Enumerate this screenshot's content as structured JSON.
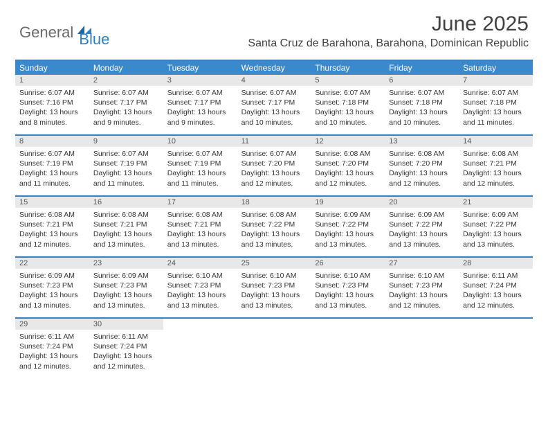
{
  "brand": {
    "part1": "General",
    "part2": "Blue"
  },
  "title": "June 2025",
  "location": "Santa Cruz de Barahona, Barahona, Dominican Republic",
  "colors": {
    "header_bg": "#3a89cc",
    "border": "#3a80bf",
    "daynum_bg": "#e7e8e9",
    "text": "#333333",
    "brand_gray": "#6a6a6a",
    "brand_blue": "#2f7fc4"
  },
  "days_of_week": [
    "Sunday",
    "Monday",
    "Tuesday",
    "Wednesday",
    "Thursday",
    "Friday",
    "Saturday"
  ],
  "weeks": [
    [
      {
        "n": "1",
        "sr": "Sunrise: 6:07 AM",
        "ss": "Sunset: 7:16 PM",
        "d1": "Daylight: 13 hours",
        "d2": "and 8 minutes."
      },
      {
        "n": "2",
        "sr": "Sunrise: 6:07 AM",
        "ss": "Sunset: 7:17 PM",
        "d1": "Daylight: 13 hours",
        "d2": "and 9 minutes."
      },
      {
        "n": "3",
        "sr": "Sunrise: 6:07 AM",
        "ss": "Sunset: 7:17 PM",
        "d1": "Daylight: 13 hours",
        "d2": "and 9 minutes."
      },
      {
        "n": "4",
        "sr": "Sunrise: 6:07 AM",
        "ss": "Sunset: 7:17 PM",
        "d1": "Daylight: 13 hours",
        "d2": "and 10 minutes."
      },
      {
        "n": "5",
        "sr": "Sunrise: 6:07 AM",
        "ss": "Sunset: 7:18 PM",
        "d1": "Daylight: 13 hours",
        "d2": "and 10 minutes."
      },
      {
        "n": "6",
        "sr": "Sunrise: 6:07 AM",
        "ss": "Sunset: 7:18 PM",
        "d1": "Daylight: 13 hours",
        "d2": "and 10 minutes."
      },
      {
        "n": "7",
        "sr": "Sunrise: 6:07 AM",
        "ss": "Sunset: 7:18 PM",
        "d1": "Daylight: 13 hours",
        "d2": "and 11 minutes."
      }
    ],
    [
      {
        "n": "8",
        "sr": "Sunrise: 6:07 AM",
        "ss": "Sunset: 7:19 PM",
        "d1": "Daylight: 13 hours",
        "d2": "and 11 minutes."
      },
      {
        "n": "9",
        "sr": "Sunrise: 6:07 AM",
        "ss": "Sunset: 7:19 PM",
        "d1": "Daylight: 13 hours",
        "d2": "and 11 minutes."
      },
      {
        "n": "10",
        "sr": "Sunrise: 6:07 AM",
        "ss": "Sunset: 7:19 PM",
        "d1": "Daylight: 13 hours",
        "d2": "and 11 minutes."
      },
      {
        "n": "11",
        "sr": "Sunrise: 6:07 AM",
        "ss": "Sunset: 7:20 PM",
        "d1": "Daylight: 13 hours",
        "d2": "and 12 minutes."
      },
      {
        "n": "12",
        "sr": "Sunrise: 6:08 AM",
        "ss": "Sunset: 7:20 PM",
        "d1": "Daylight: 13 hours",
        "d2": "and 12 minutes."
      },
      {
        "n": "13",
        "sr": "Sunrise: 6:08 AM",
        "ss": "Sunset: 7:20 PM",
        "d1": "Daylight: 13 hours",
        "d2": "and 12 minutes."
      },
      {
        "n": "14",
        "sr": "Sunrise: 6:08 AM",
        "ss": "Sunset: 7:21 PM",
        "d1": "Daylight: 13 hours",
        "d2": "and 12 minutes."
      }
    ],
    [
      {
        "n": "15",
        "sr": "Sunrise: 6:08 AM",
        "ss": "Sunset: 7:21 PM",
        "d1": "Daylight: 13 hours",
        "d2": "and 12 minutes."
      },
      {
        "n": "16",
        "sr": "Sunrise: 6:08 AM",
        "ss": "Sunset: 7:21 PM",
        "d1": "Daylight: 13 hours",
        "d2": "and 13 minutes."
      },
      {
        "n": "17",
        "sr": "Sunrise: 6:08 AM",
        "ss": "Sunset: 7:21 PM",
        "d1": "Daylight: 13 hours",
        "d2": "and 13 minutes."
      },
      {
        "n": "18",
        "sr": "Sunrise: 6:08 AM",
        "ss": "Sunset: 7:22 PM",
        "d1": "Daylight: 13 hours",
        "d2": "and 13 minutes."
      },
      {
        "n": "19",
        "sr": "Sunrise: 6:09 AM",
        "ss": "Sunset: 7:22 PM",
        "d1": "Daylight: 13 hours",
        "d2": "and 13 minutes."
      },
      {
        "n": "20",
        "sr": "Sunrise: 6:09 AM",
        "ss": "Sunset: 7:22 PM",
        "d1": "Daylight: 13 hours",
        "d2": "and 13 minutes."
      },
      {
        "n": "21",
        "sr": "Sunrise: 6:09 AM",
        "ss": "Sunset: 7:22 PM",
        "d1": "Daylight: 13 hours",
        "d2": "and 13 minutes."
      }
    ],
    [
      {
        "n": "22",
        "sr": "Sunrise: 6:09 AM",
        "ss": "Sunset: 7:23 PM",
        "d1": "Daylight: 13 hours",
        "d2": "and 13 minutes."
      },
      {
        "n": "23",
        "sr": "Sunrise: 6:09 AM",
        "ss": "Sunset: 7:23 PM",
        "d1": "Daylight: 13 hours",
        "d2": "and 13 minutes."
      },
      {
        "n": "24",
        "sr": "Sunrise: 6:10 AM",
        "ss": "Sunset: 7:23 PM",
        "d1": "Daylight: 13 hours",
        "d2": "and 13 minutes."
      },
      {
        "n": "25",
        "sr": "Sunrise: 6:10 AM",
        "ss": "Sunset: 7:23 PM",
        "d1": "Daylight: 13 hours",
        "d2": "and 13 minutes."
      },
      {
        "n": "26",
        "sr": "Sunrise: 6:10 AM",
        "ss": "Sunset: 7:23 PM",
        "d1": "Daylight: 13 hours",
        "d2": "and 13 minutes."
      },
      {
        "n": "27",
        "sr": "Sunrise: 6:10 AM",
        "ss": "Sunset: 7:23 PM",
        "d1": "Daylight: 13 hours",
        "d2": "and 12 minutes."
      },
      {
        "n": "28",
        "sr": "Sunrise: 6:11 AM",
        "ss": "Sunset: 7:24 PM",
        "d1": "Daylight: 13 hours",
        "d2": "and 12 minutes."
      }
    ],
    [
      {
        "n": "29",
        "sr": "Sunrise: 6:11 AM",
        "ss": "Sunset: 7:24 PM",
        "d1": "Daylight: 13 hours",
        "d2": "and 12 minutes."
      },
      {
        "n": "30",
        "sr": "Sunrise: 6:11 AM",
        "ss": "Sunset: 7:24 PM",
        "d1": "Daylight: 13 hours",
        "d2": "and 12 minutes."
      },
      null,
      null,
      null,
      null,
      null
    ]
  ]
}
